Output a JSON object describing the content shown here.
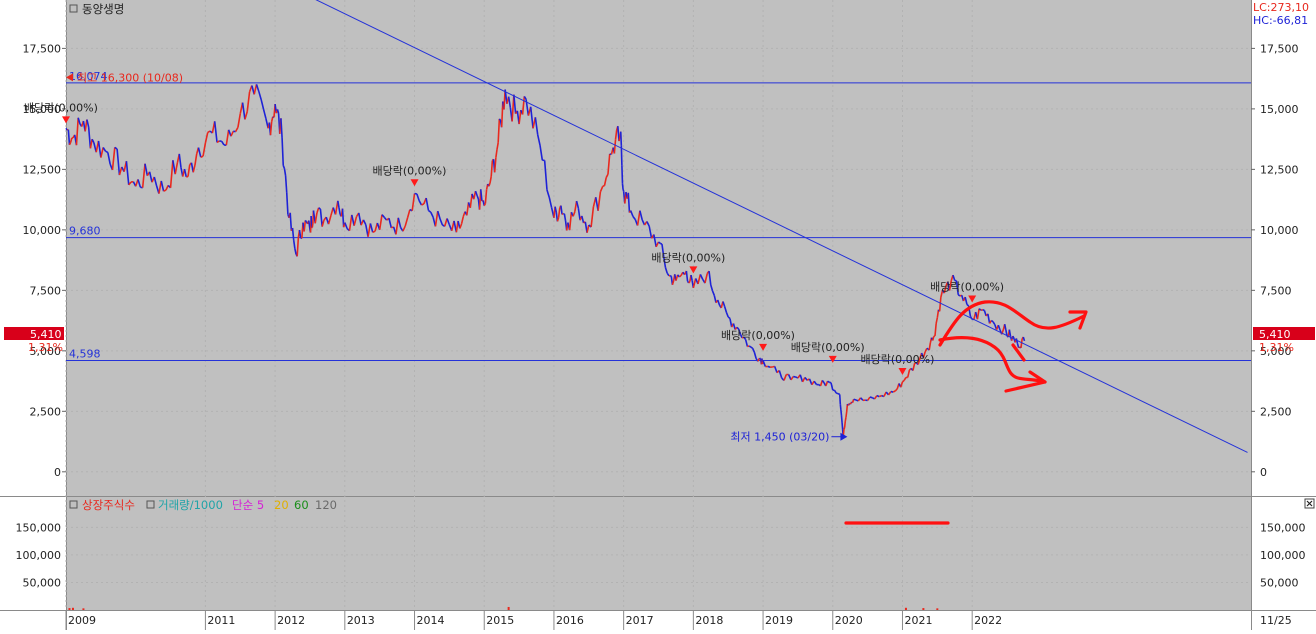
{
  "stock_name": "동양생명",
  "lc_label": "LC:273,10",
  "hc_label": "HC:-66,81",
  "current_price": "5,410",
  "current_pct": "1,31%",
  "volume_legend": [
    {
      "text": "상장주식수",
      "color": "#e8281e"
    },
    {
      "text": "거래량/1000",
      "color": "#20a4a8"
    },
    {
      "text": "단순 5",
      "color": "#d61fd6"
    },
    {
      "text": "20",
      "color": "#e0b000"
    },
    {
      "text": "60",
      "color": "#1a8f1a"
    },
    {
      "text": "120",
      "color": "#6a6a6a"
    }
  ],
  "x_right_label": "11/25",
  "colors": {
    "up": "#e8281e",
    "down": "#1e22d6",
    "line": "#2432d8",
    "annotation": "#ff1a1a",
    "bg": "#c0c0c0"
  },
  "chart_data": {
    "type": "line",
    "title": "동양생명",
    "price_axis": {
      "ylim": [
        -1000,
        19500
      ],
      "ticks": [
        0,
        2500,
        5000,
        7500,
        10000,
        12500,
        15000,
        17500
      ],
      "tick_labels": [
        "0",
        "2,500",
        "5,000",
        "7,500",
        "10,000",
        "12,500",
        "15,000",
        "17,500"
      ]
    },
    "volume_axis": {
      "ylim": [
        0,
        205000
      ],
      "ticks": [
        50000,
        100000,
        150000
      ],
      "tick_labels": [
        "50,000",
        "100,000",
        "150,000"
      ]
    },
    "x_axis": {
      "xlim": [
        2009.0,
        2026.0
      ],
      "ticks": [
        2009,
        2011,
        2012,
        2013,
        2014,
        2015,
        2016,
        2017,
        2018,
        2019,
        2020,
        2021,
        2022
      ],
      "tick_labels": [
        "2009",
        "2011",
        "2012",
        "2013",
        "2014",
        "2015",
        "2016",
        "2017",
        "2018",
        "2019",
        "2020",
        "2021",
        "2022"
      ]
    },
    "price_series": {
      "x": [
        2009.0,
        2009.1,
        2009.25,
        2009.4,
        2009.6,
        2009.8,
        2010.0,
        2010.2,
        2010.4,
        2010.6,
        2010.75,
        2010.9,
        2011.1,
        2011.3,
        2011.5,
        2011.7,
        2011.9,
        2012.0,
        2012.1,
        2012.2,
        2012.3,
        2012.4,
        2012.5,
        2012.55,
        2012.7,
        2012.9,
        2013.0,
        2013.2,
        2013.4,
        2013.6,
        2013.8,
        2014.0,
        2014.2,
        2014.4,
        2014.6,
        2014.75,
        2014.9,
        2015.0,
        2015.1,
        2015.2,
        2015.3,
        2015.45,
        2015.6,
        2015.8,
        2016.0,
        2016.1,
        2016.2,
        2016.35,
        2016.5,
        2016.7,
        2016.85,
        2016.95,
        2017.0,
        2017.1,
        2017.3,
        2017.5,
        2017.65,
        2017.75,
        2017.9,
        2018.0,
        2018.2,
        2018.35,
        2018.5,
        2018.65,
        2018.8,
        2018.95,
        2019.0,
        2019.2,
        2019.4,
        2019.6,
        2019.8,
        2019.95,
        2020.1,
        2020.15,
        2020.21,
        2020.3,
        2020.5,
        2020.7,
        2020.9,
        2021.05,
        2021.2,
        2021.35,
        2021.45,
        2021.55,
        2021.7,
        2021.85,
        2022.0,
        2022.15,
        2022.3,
        2022.45,
        2022.55,
        2022.65,
        2022.75
      ],
      "y": [
        14200,
        13800,
        14500,
        13600,
        13200,
        12600,
        11800,
        12400,
        11600,
        12800,
        12200,
        13400,
        14000,
        13500,
        14800,
        15600,
        14200,
        15200,
        13800,
        10500,
        9000,
        10300,
        10000,
        10800,
        10400,
        11200,
        10300,
        10700,
        9900,
        10400,
        10100,
        11500,
        10800,
        10200,
        9900,
        10600,
        11400,
        11000,
        12200,
        13600,
        15800,
        14800,
        15400,
        13500,
        10500,
        11000,
        10300,
        10900,
        10200,
        11800,
        13400,
        13900,
        11600,
        10800,
        10200,
        9500,
        8100,
        7900,
        8300,
        7600,
        8200,
        7100,
        6400,
        5900,
        5200,
        4700,
        4600,
        4100,
        3800,
        3900,
        3600,
        3700,
        3200,
        1450,
        2800,
        3000,
        2950,
        3150,
        3350,
        3900,
        4500,
        5100,
        5600,
        7200,
        7900,
        7300,
        6300,
        6700,
        6200,
        5900,
        5600,
        5300,
        5410
      ]
    },
    "horizontal_lines": [
      {
        "value": 16074,
        "label": "16,074"
      },
      {
        "value": 9680,
        "label": "9,680"
      },
      {
        "value": 4598,
        "label": "4,598"
      }
    ],
    "trendline": {
      "start": [
        2012.38,
        19800
      ],
      "end": [
        2025.95,
        800
      ]
    },
    "annotations": [
      {
        "x": 2009.0,
        "y": 14400,
        "text": "배당락(0,00%)"
      },
      {
        "x": 2014.0,
        "y": 11800,
        "text": "배당락(0,00%)"
      },
      {
        "x": 2018.0,
        "y": 8200,
        "text": "배당락(0,00%)"
      },
      {
        "x": 2019.0,
        "y": 5000,
        "text": "배당락(0,00%)"
      },
      {
        "x": 2020.0,
        "y": 4500,
        "text": "배당락(0,00%)"
      },
      {
        "x": 2021.0,
        "y": 4000,
        "text": "배당락(0,00%)"
      },
      {
        "x": 2022.0,
        "y": 7000,
        "text": "배당락(0,00%)"
      }
    ],
    "high_marker": {
      "x": 2009.0,
      "y": 16300,
      "text": "최고 16,300 (10/08)"
    },
    "low_marker": {
      "x": 2020.21,
      "y": 1450,
      "text": "최저 1,450 (03/20)"
    },
    "volume_series": {
      "x": [
        2009.05,
        2009.1,
        2009.25,
        2015.35,
        2021.05,
        2021.3,
        2021.5
      ],
      "values": [
        3500,
        4000,
        3000,
        5500,
        4000,
        3500,
        3000
      ]
    }
  }
}
